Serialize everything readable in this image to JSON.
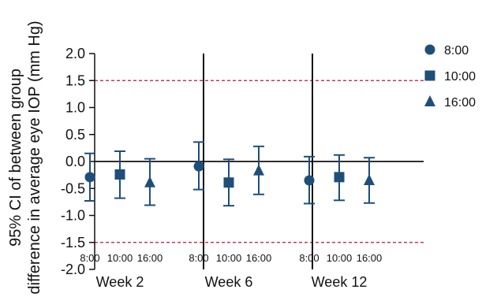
{
  "chart_data": {
    "type": "scatter",
    "ylabel_line1": "95% CI of between group",
    "ylabel_line2": "difference in average eye IOP (mm Hg)",
    "ylim": [
      -2.0,
      2.0
    ],
    "y_ticks": [
      "2.0",
      "1.5",
      "1.0",
      "0.5",
      "0.0",
      "-0.5",
      "-1.0",
      "-1.5",
      "-2.0"
    ],
    "y_tick_values": [
      2.0,
      1.5,
      1.0,
      0.5,
      0.0,
      -0.5,
      -1.0,
      -1.5,
      -2.0
    ],
    "reference_lines": [
      1.5,
      -1.5
    ],
    "groups": [
      "Week 2",
      "Week 6",
      "Week 12"
    ],
    "time_labels": [
      "8:00",
      "10:00",
      "16:00"
    ],
    "legend": [
      {
        "label": "8:00",
        "marker": "circle"
      },
      {
        "label": "10:00",
        "marker": "square"
      },
      {
        "label": "16:00",
        "marker": "triangle"
      }
    ],
    "series": [
      {
        "name": "8:00",
        "marker": "circle",
        "points": [
          {
            "group": "Week 2",
            "y": -0.29,
            "lower": -0.73,
            "upper": 0.15
          },
          {
            "group": "Week 6",
            "y": -0.09,
            "lower": -0.52,
            "upper": 0.36
          },
          {
            "group": "Week 12",
            "y": -0.35,
            "lower": -0.78,
            "upper": 0.09
          }
        ]
      },
      {
        "name": "10:00",
        "marker": "square",
        "points": [
          {
            "group": "Week 2",
            "y": -0.24,
            "lower": -0.68,
            "upper": 0.19
          },
          {
            "group": "Week 6",
            "y": -0.39,
            "lower": -0.82,
            "upper": 0.04
          },
          {
            "group": "Week 12",
            "y": -0.29,
            "lower": -0.72,
            "upper": 0.12
          }
        ]
      },
      {
        "name": "16:00",
        "marker": "triangle",
        "points": [
          {
            "group": "Week 2",
            "y": -0.39,
            "lower": -0.81,
            "upper": 0.05
          },
          {
            "group": "Week 6",
            "y": -0.17,
            "lower": -0.61,
            "upper": 0.28
          },
          {
            "group": "Week 12",
            "y": -0.35,
            "lower": -0.77,
            "upper": 0.07
          }
        ]
      }
    ],
    "colors": {
      "marker": "#1f4e79",
      "reference": "#c8102e",
      "axis": "#111111"
    }
  }
}
